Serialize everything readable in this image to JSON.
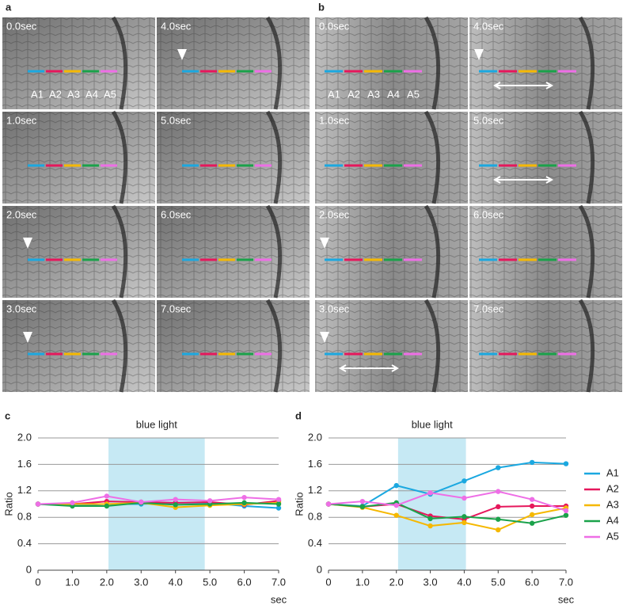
{
  "image_panels": [
    {
      "label": "a",
      "frames": [
        {
          "time": "0.0sec",
          "segment_labels": [
            "A1",
            "A2",
            "A3",
            "A4",
            "A5"
          ]
        },
        {
          "time": "4.0sec",
          "arrowhead": true
        },
        {
          "time": "1.0sec"
        },
        {
          "time": "5.0sec"
        },
        {
          "time": "2.0sec",
          "arrowhead": true
        },
        {
          "time": "6.0sec"
        },
        {
          "time": "3.0sec",
          "arrowhead": true
        },
        {
          "time": "7.0sec"
        }
      ]
    },
    {
      "label": "b",
      "frames": [
        {
          "time": "0.0sec",
          "segment_labels": [
            "A1",
            "A2",
            "A3",
            "A4",
            "A5"
          ]
        },
        {
          "time": "4.0sec",
          "arrowhead": true,
          "double_arrow": true
        },
        {
          "time": "1.0sec"
        },
        {
          "time": "5.0sec",
          "double_arrow": true
        },
        {
          "time": "2.0sec",
          "arrowhead": true
        },
        {
          "time": "6.0sec"
        },
        {
          "time": "3.0sec",
          "arrowhead": true,
          "double_arrow": true
        },
        {
          "time": "7.0sec"
        }
      ]
    }
  ],
  "chart_data": [
    {
      "type": "line",
      "panel_label": "c",
      "title": "blue light",
      "y_label": "Ratio",
      "x_unit": "sec",
      "highlight_range": [
        2.05,
        4.85
      ],
      "highlight_color": "#c6e9f4",
      "x": [
        0,
        1,
        2,
        3,
        4,
        5,
        6,
        7
      ],
      "xlim": [
        0,
        7
      ],
      "xticks": [
        0,
        {
          "value": 1,
          "label": "1.0"
        },
        {
          "value": 2,
          "label": "2.0"
        },
        {
          "value": 3,
          "label": "3.0"
        },
        {
          "value": 4,
          "label": "4.0"
        },
        {
          "value": 5,
          "label": "5.0"
        },
        {
          "value": 6,
          "label": "6.0"
        },
        {
          "value": 7,
          "label": "7.0"
        }
      ],
      "ylim": [
        0,
        2
      ],
      "yticks": [
        0,
        0.4,
        0.8,
        1.2,
        1.6,
        {
          "value": 2,
          "label": "2.0"
        }
      ],
      "grid": true,
      "series": [
        {
          "color": "#1ba8e0",
          "values": [
            1.0,
            0.98,
            1.0,
            1.0,
            1.02,
            1.02,
            0.97,
            0.94
          ]
        },
        {
          "color": "#e6175c",
          "values": [
            1.0,
            1.0,
            1.04,
            1.03,
            1.02,
            1.03,
            0.99,
            1.05
          ]
        },
        {
          "color": "#f5b800",
          "values": [
            1.0,
            1.0,
            1.0,
            1.02,
            0.95,
            0.98,
            1.0,
            1.02
          ]
        },
        {
          "color": "#1aa24a",
          "values": [
            1.0,
            0.97,
            0.97,
            1.02,
            0.99,
            1.0,
            1.02,
            1.0
          ]
        },
        {
          "color": "#ee6ee6",
          "values": [
            1.0,
            1.02,
            1.12,
            1.03,
            1.07,
            1.05,
            1.1,
            1.07
          ]
        }
      ]
    },
    {
      "type": "line",
      "panel_label": "d",
      "title": "blue light",
      "y_label": "Ratio",
      "x_unit": "sec",
      "highlight_range": [
        2.05,
        4.05
      ],
      "highlight_color": "#c6e9f4",
      "x": [
        0,
        1,
        2,
        3,
        4,
        5,
        6,
        7
      ],
      "xlim": [
        0,
        7
      ],
      "xticks": [
        0,
        {
          "value": 1,
          "label": "1.0"
        },
        {
          "value": 2,
          "label": "2.0"
        },
        {
          "value": 3,
          "label": "3.0"
        },
        {
          "value": 4,
          "label": "4.0"
        },
        {
          "value": 5,
          "label": "5.0"
        },
        {
          "value": 6,
          "label": "6.0"
        },
        {
          "value": 7,
          "label": "7.0"
        }
      ],
      "ylim": [
        0,
        2
      ],
      "yticks": [
        0,
        0.4,
        0.8,
        1.2,
        1.6,
        {
          "value": 2,
          "label": "2.0"
        }
      ],
      "grid": true,
      "legend": "right",
      "series": [
        {
          "name": "A1",
          "color": "#1ba8e0",
          "values": [
            1.0,
            0.97,
            1.28,
            1.15,
            1.35,
            1.55,
            1.63,
            1.61
          ]
        },
        {
          "name": "A2",
          "color": "#e6175c",
          "values": [
            1.0,
            0.96,
            1.0,
            0.82,
            0.77,
            0.96,
            0.97,
            0.97
          ]
        },
        {
          "name": "A3",
          "color": "#f5b800",
          "values": [
            1.0,
            0.95,
            0.83,
            0.67,
            0.72,
            0.61,
            0.84,
            0.94
          ]
        },
        {
          "name": "A4",
          "color": "#1aa24a",
          "values": [
            1.0,
            0.96,
            1.02,
            0.78,
            0.81,
            0.77,
            0.71,
            0.83
          ]
        },
        {
          "name": "A5",
          "color": "#ee6ee6",
          "values": [
            1.0,
            1.04,
            0.98,
            1.17,
            1.09,
            1.19,
            1.07,
            0.9
          ]
        }
      ]
    }
  ]
}
